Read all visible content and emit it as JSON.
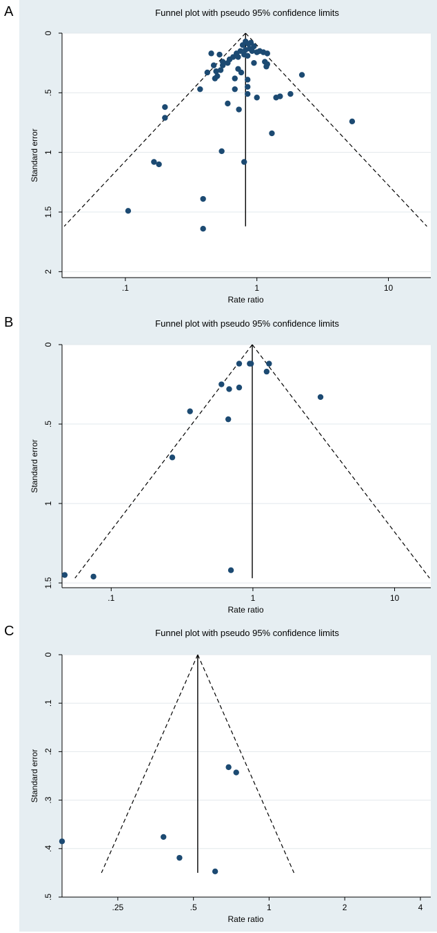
{
  "chart_data": [
    {
      "label": "A",
      "type": "scatter",
      "title": "Funnel plot with pseudo 95% confidence limits",
      "xlabel": "Rate ratio",
      "ylabel": "Standard error",
      "x_scale": "log",
      "y_reversed": true,
      "xlim": [
        0.033,
        21
      ],
      "ylim": [
        0,
        2.05
      ],
      "x_ticks": [
        0.1,
        1,
        10
      ],
      "x_tick_labels": [
        ".1",
        "1",
        "10"
      ],
      "y_ticks": [
        0,
        0.5,
        1,
        1.5,
        2
      ],
      "y_tick_labels": [
        "0",
        ".5",
        "1",
        "1.5",
        "2"
      ],
      "pooled_estimate": 0.82,
      "funnel_se_max": 1.62,
      "grid": true,
      "points": [
        [
          0.82,
          0.07
        ],
        [
          0.86,
          0.09
        ],
        [
          0.9,
          0.08
        ],
        [
          0.78,
          0.1
        ],
        [
          0.95,
          0.11
        ],
        [
          0.88,
          0.13
        ],
        [
          0.82,
          0.14
        ],
        [
          0.75,
          0.15
        ],
        [
          0.92,
          0.15
        ],
        [
          1.0,
          0.16
        ],
        [
          1.05,
          0.15
        ],
        [
          1.12,
          0.16
        ],
        [
          1.2,
          0.17
        ],
        [
          0.7,
          0.17
        ],
        [
          0.8,
          0.18
        ],
        [
          0.85,
          0.19
        ],
        [
          0.72,
          0.2
        ],
        [
          0.66,
          0.2
        ],
        [
          0.62,
          0.22
        ],
        [
          0.6,
          0.25
        ],
        [
          0.55,
          0.24
        ],
        [
          0.52,
          0.18
        ],
        [
          0.45,
          0.17
        ],
        [
          0.47,
          0.27
        ],
        [
          0.55,
          0.27
        ],
        [
          0.53,
          0.31
        ],
        [
          0.49,
          0.32
        ],
        [
          0.42,
          0.33
        ],
        [
          0.5,
          0.36
        ],
        [
          0.48,
          0.38
        ],
        [
          0.95,
          0.25
        ],
        [
          1.15,
          0.24
        ],
        [
          1.2,
          0.26
        ],
        [
          1.18,
          0.28
        ],
        [
          0.72,
          0.3
        ],
        [
          0.76,
          0.33
        ],
        [
          0.68,
          0.38
        ],
        [
          0.85,
          0.39
        ],
        [
          0.85,
          0.45
        ],
        [
          0.68,
          0.47
        ],
        [
          0.37,
          0.47
        ],
        [
          0.85,
          0.51
        ],
        [
          1.0,
          0.54
        ],
        [
          1.4,
          0.54
        ],
        [
          1.5,
          0.53
        ],
        [
          1.8,
          0.51
        ],
        [
          2.2,
          0.35
        ],
        [
          0.6,
          0.59
        ],
        [
          0.73,
          0.64
        ],
        [
          0.2,
          0.62
        ],
        [
          0.2,
          0.71
        ],
        [
          5.3,
          0.74
        ],
        [
          1.3,
          0.84
        ],
        [
          0.54,
          0.99
        ],
        [
          0.8,
          1.08
        ],
        [
          0.165,
          1.08
        ],
        [
          0.18,
          1.1
        ],
        [
          0.39,
          1.39
        ],
        [
          0.105,
          1.49
        ],
        [
          0.39,
          1.64
        ]
      ]
    },
    {
      "label": "B",
      "type": "scatter",
      "title": "Funnel plot with pseudo 95% confidence limits",
      "xlabel": "Rate ratio",
      "ylabel": "Standard error",
      "x_scale": "log",
      "y_reversed": true,
      "xlim": [
        0.045,
        18
      ],
      "ylim": [
        0,
        1.53
      ],
      "x_ticks": [
        0.1,
        1,
        10
      ],
      "x_tick_labels": [
        ".1",
        "1",
        "10"
      ],
      "y_ticks": [
        0,
        0.5,
        1,
        1.5
      ],
      "y_tick_labels": [
        "0",
        ".5",
        "1",
        "1.5"
      ],
      "pooled_estimate": 0.99,
      "funnel_se_max": 1.47,
      "grid": true,
      "points": [
        [
          0.8,
          0.12
        ],
        [
          0.95,
          0.12
        ],
        [
          0.97,
          0.12
        ],
        [
          1.3,
          0.12
        ],
        [
          1.25,
          0.17
        ],
        [
          0.6,
          0.25
        ],
        [
          0.8,
          0.27
        ],
        [
          0.68,
          0.28
        ],
        [
          3.0,
          0.33
        ],
        [
          0.36,
          0.42
        ],
        [
          0.67,
          0.47
        ],
        [
          0.27,
          0.71
        ],
        [
          0.047,
          1.45
        ],
        [
          0.075,
          1.46
        ],
        [
          0.7,
          1.42
        ]
      ]
    },
    {
      "label": "C",
      "type": "scatter",
      "title": "Funnel plot with pseudo 95% confidence limits",
      "xlabel": "Rate ratio",
      "ylabel": "Standard error",
      "x_scale": "log",
      "y_reversed": true,
      "xlim": [
        0.15,
        4.4
      ],
      "ylim": [
        0,
        0.5
      ],
      "x_ticks": [
        0.25,
        0.5,
        1,
        2,
        4
      ],
      "x_tick_labels": [
        ".25",
        ".5",
        "1",
        "2",
        "4"
      ],
      "y_ticks": [
        0,
        0.1,
        0.2,
        0.3,
        0.4,
        0.5
      ],
      "y_tick_labels": [
        "0",
        ".1",
        ".2",
        ".3",
        ".4",
        ".5"
      ],
      "pooled_estimate": 0.52,
      "funnel_se_max": 0.45,
      "grid": true,
      "points": [
        [
          0.15,
          0.385
        ],
        [
          0.38,
          0.376
        ],
        [
          0.44,
          0.419
        ],
        [
          0.61,
          0.447
        ],
        [
          0.69,
          0.232
        ],
        [
          0.74,
          0.243
        ]
      ]
    }
  ]
}
